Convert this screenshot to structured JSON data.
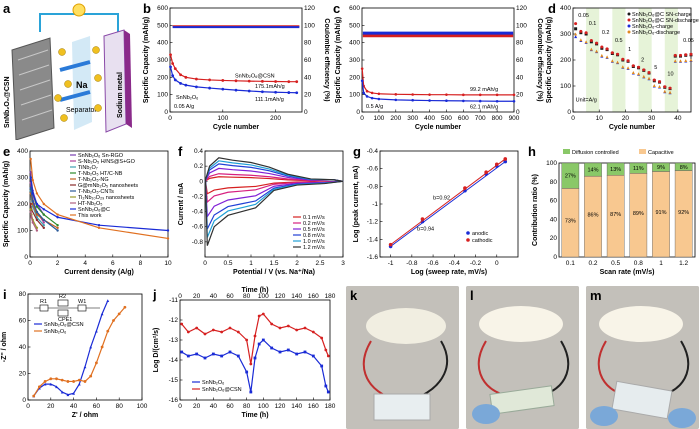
{
  "panel_labels": {
    "a": "a",
    "b": "b",
    "c": "c",
    "d": "d",
    "e": "e",
    "f": "f",
    "g": "g",
    "h": "h",
    "i": "i",
    "j": "j",
    "k": "k",
    "l": "l",
    "m": "m"
  },
  "schematic": {
    "electrode_label": "SnNb₂O₆@CSN",
    "ion_label": "Na",
    "separator_label": "Separator",
    "metal_label": "Sodium metal",
    "electron_label": "e⁻"
  },
  "chart_data": [
    {
      "id": "b",
      "type": "scatter",
      "xlabel": "Cycle number",
      "ylabel": "Specific Capacity (mAh/g)",
      "y2label": "Coulombic efficiency (%)",
      "xlim": [
        0,
        250
      ],
      "ylim": [
        0,
        600
      ],
      "y2lim": [
        0,
        120
      ],
      "xticks": [
        0,
        100,
        200
      ],
      "yticks": [
        0,
        100,
        200,
        300,
        400,
        500,
        600
      ],
      "y2ticks": [
        0,
        20,
        40,
        60,
        80,
        100,
        120
      ],
      "annotations": {
        "rate": "0.05 A/g",
        "cap1": "175.1mAh/g",
        "cap2": "111.1mAh/g",
        "series1": "SnNb₂O₆@CSN",
        "series2": "SnNb₂O₆"
      },
      "series": [
        {
          "name": "SnNb₂O₆@CSN",
          "color": "#d62020",
          "x": [
            1,
            5,
            10,
            20,
            30,
            50,
            75,
            100,
            125,
            150,
            175,
            200,
            225,
            240
          ],
          "y": [
            330,
            280,
            250,
            215,
            200,
            190,
            185,
            182,
            180,
            178,
            177,
            176,
            175,
            175
          ]
        },
        {
          "name": "SnNb₂O₆",
          "color": "#1a2bd6",
          "x": [
            1,
            5,
            10,
            20,
            30,
            50,
            75,
            100,
            125,
            150,
            175,
            200,
            225,
            240
          ],
          "y": [
            260,
            210,
            185,
            165,
            155,
            145,
            138,
            132,
            126,
            121,
            117,
            114,
            112,
            111
          ]
        }
      ],
      "ce_series": [
        {
          "name": "CE SnNb₂O₆@CSN",
          "color": "#d62020",
          "value": 99
        },
        {
          "name": "CE SnNb₂O₆",
          "color": "#1a2bd6",
          "value": 98
        }
      ]
    },
    {
      "id": "c",
      "type": "scatter",
      "xlabel": "Cycle number",
      "ylabel": "Specific Capacity (mAh/g)",
      "y2label": "Coulombic efficiency (%)",
      "xlim": [
        0,
        900
      ],
      "ylim": [
        0,
        600
      ],
      "y2lim": [
        0,
        120
      ],
      "xticks": [
        0,
        100,
        200,
        300,
        400,
        500,
        600,
        700,
        800,
        900
      ],
      "yticks": [
        0,
        100,
        200,
        300,
        400,
        500,
        600
      ],
      "y2ticks": [
        0,
        20,
        40,
        60,
        80,
        100,
        120
      ],
      "annotations": {
        "rate": "0.5 A/g",
        "cap1": "99.2 mAh/g",
        "cap2": "62.1 mAh/g"
      },
      "series": [
        {
          "name": "SnNb₂O₆@CSN",
          "color": "#d62020",
          "x": [
            1,
            10,
            30,
            60,
            100,
            200,
            300,
            400,
            500,
            600,
            700,
            800,
            900
          ],
          "y": [
            250,
            150,
            120,
            110,
            105,
            102,
            101,
            100,
            100,
            99,
            99,
            99,
            99
          ]
        },
        {
          "name": "SnNb₂O₆",
          "color": "#1a2bd6",
          "x": [
            1,
            10,
            30,
            60,
            100,
            200,
            300,
            400,
            500,
            600,
            700,
            800,
            900
          ],
          "y": [
            180,
            110,
            90,
            80,
            75,
            70,
            68,
            66,
            65,
            64,
            63,
            62,
            62
          ]
        }
      ]
    },
    {
      "id": "d",
      "type": "scatter",
      "xlabel": "Cycle number",
      "ylabel": "Specific Capacity (mAh/g)",
      "xlim": [
        0,
        45
      ],
      "ylim": [
        0,
        400
      ],
      "xticks": [
        0,
        10,
        20,
        30,
        40
      ],
      "yticks": [
        0,
        100,
        200,
        300,
        400
      ],
      "unit_label": "Unit=A/g",
      "rate_labels": [
        "0.05",
        "0.1",
        "0.2",
        "0.5",
        "1",
        "2",
        "5",
        "10",
        "0.05"
      ],
      "legend": [
        "SnNb₂O₆@C SN-charge",
        "SnNb₂O₆@C SN-discharge",
        "SnNb₂O₆-charge",
        "SnNb₂O₆-discharge"
      ],
      "series": [
        {
          "name": "SnNb₂O₆@C SN-charge",
          "color": "#1a1a1a",
          "x": [
            1,
            3,
            5,
            7,
            9,
            11,
            13,
            15,
            17,
            19,
            21,
            23,
            25,
            27,
            29,
            31,
            33,
            35,
            37,
            39,
            41,
            43,
            45
          ],
          "y": [
            320,
            305,
            300,
            270,
            262,
            245,
            240,
            225,
            220,
            200,
            195,
            175,
            170,
            160,
            150,
            120,
            115,
            95,
            90,
            215,
            215,
            218,
            220
          ]
        },
        {
          "name": "SnNb₂O₆@C SN-discharge",
          "color": "#d62020",
          "x": [
            1,
            3,
            5,
            7,
            9,
            11,
            13,
            15,
            17,
            19,
            21,
            23,
            25,
            27,
            29,
            31,
            33,
            35,
            37,
            39,
            41,
            43,
            45
          ],
          "y": [
            340,
            310,
            305,
            275,
            265,
            250,
            243,
            228,
            222,
            203,
            197,
            178,
            172,
            162,
            152,
            123,
            117,
            97,
            92,
            218,
            218,
            220,
            222
          ]
        },
        {
          "name": "SnNb₂O₆-charge",
          "color": "#1a2bd6",
          "x": [
            1,
            3,
            5,
            7,
            9,
            11,
            13,
            15,
            17,
            19,
            21,
            23,
            25,
            27,
            29,
            31,
            33,
            35,
            37,
            39,
            41,
            43,
            45
          ],
          "y": [
            290,
            275,
            268,
            240,
            232,
            215,
            210,
            195,
            190,
            172,
            168,
            150,
            145,
            135,
            128,
            100,
            96,
            78,
            74,
            195,
            195,
            196,
            198
          ]
        },
        {
          "name": "SnNb₂O₆-discharge",
          "color": "#e08a20",
          "x": [
            1,
            3,
            5,
            7,
            9,
            11,
            13,
            15,
            17,
            19,
            21,
            23,
            25,
            27,
            29,
            31,
            33,
            35,
            37,
            39,
            41,
            43,
            45
          ],
          "y": [
            300,
            278,
            270,
            242,
            234,
            218,
            212,
            197,
            192,
            174,
            170,
            152,
            147,
            137,
            130,
            102,
            98,
            80,
            76,
            197,
            197,
            198,
            200
          ]
        }
      ]
    },
    {
      "id": "e",
      "type": "line",
      "xlabel": "Current density (A/g)",
      "ylabel": "Specific Capacity (mAh/g)",
      "xlim": [
        0,
        10
      ],
      "ylim": [
        0,
        400
      ],
      "xticks": [
        0,
        2,
        4,
        6,
        8,
        10
      ],
      "yticks": [
        0,
        100,
        200,
        300,
        400
      ],
      "legend": [
        "SnNb₂O₆ Sn-RGO",
        "S-Nb₂O₅ H/NS@S+GO",
        "TiNb₂O₇",
        "T-Nb₂O₅ HT/C-NB",
        "T-Nb₂O₅-NG",
        "G@mNb₂O₅ nanosheets",
        "T-Nb₂O₅-CNTs",
        "Ti₂Nb₁₀O₂₉ nanosheets",
        "HT-Nb₂O₅",
        "SnNb₂O₆@C",
        "This work"
      ],
      "colors": [
        "#7a3fb0",
        "#b03f9a",
        "#3fa0b0",
        "#2a8a2a",
        "#c06020",
        "#8a2a2a",
        "#2a5a9a",
        "#9a9a2a",
        "#b06080",
        "#1a2bd6",
        "#e07020"
      ]
    },
    {
      "id": "f",
      "type": "line",
      "xlabel": "Potential / V (vs. Na⁺/Na)",
      "ylabel": "Current / mA",
      "xlim": [
        0,
        3
      ],
      "ylim": [
        -1.0,
        0.4
      ],
      "xticks": [
        0,
        0.5,
        1.0,
        1.5,
        2.0,
        2.5,
        3.0
      ],
      "yticks": [
        -0.8,
        -0.6,
        -0.4,
        -0.2,
        0.0,
        0.2,
        0.4
      ],
      "legend": [
        "0.1 mV/s",
        "0.2 mV/s",
        "0.5 mV/s",
        "0.8 mV/s",
        "1.0 mV/s",
        "1.2 mV/s"
      ],
      "colors": [
        "#d62020",
        "#d62080",
        "#8020d6",
        "#2040d6",
        "#20a0d6",
        "#303030"
      ],
      "peak_current": [
        0.06,
        0.1,
        0.17,
        0.23,
        0.27,
        0.31
      ]
    },
    {
      "id": "g",
      "type": "scatter",
      "xlabel": "Log (sweep rate, mV/s)",
      "ylabel": "Log (peak current, mA)",
      "xlim": [
        -1.1,
        0.2
      ],
      "ylim": [
        -1.6,
        -0.4
      ],
      "xticks": [
        -1.0,
        -0.8,
        -0.6,
        -0.4,
        -0.2,
        0.0
      ],
      "yticks": [
        -1.6,
        -1.4,
        -1.2,
        -1.0,
        -0.8,
        -0.6,
        -0.4
      ],
      "annotations": {
        "b1": "b=0.92",
        "b2": "b=0.94"
      },
      "series": [
        {
          "name": "anodic",
          "color": "#1a2bd6",
          "x": [
            -1.0,
            -0.7,
            -0.3,
            -0.1,
            0.0,
            0.08
          ],
          "y": [
            -1.48,
            -1.2,
            -0.85,
            -0.66,
            -0.57,
            -0.52
          ]
        },
        {
          "name": "cathodic",
          "color": "#d62020",
          "x": [
            -1.0,
            -0.7,
            -0.3,
            -0.1,
            0.0,
            0.08
          ],
          "y": [
            -1.46,
            -1.17,
            -0.82,
            -0.64,
            -0.55,
            -0.49
          ]
        }
      ]
    },
    {
      "id": "h",
      "type": "bar",
      "xlabel": "Scan rate (mV/s)",
      "ylabel": "Contribution ratio (%)",
      "categories": [
        "0.1",
        "0.2",
        "0.5",
        "0.8",
        "1",
        "1.2"
      ],
      "ylim": [
        0,
        100
      ],
      "yticks": [
        0,
        20,
        40,
        60,
        80,
        100
      ],
      "legend": [
        "Diffusion controlled",
        "Capacitive"
      ],
      "series": [
        {
          "name": "Capacitive",
          "color": "#f8c890",
          "values": [
            73,
            86,
            87,
            89,
            91,
            92
          ],
          "labels": [
            "73%",
            "86%",
            "87%",
            "89%",
            "91%",
            "92%"
          ]
        },
        {
          "name": "Diffusion controlled",
          "color": "#8ac868",
          "values": [
            27,
            14,
            13,
            11,
            9,
            8
          ],
          "labels": [
            "27%",
            "14%",
            "13%",
            "11%",
            "9%",
            "8%"
          ]
        }
      ]
    },
    {
      "id": "i",
      "type": "line",
      "xlabel": "Z' / ohm",
      "ylabel": "-Z'' / ohm",
      "xlim": [
        0,
        100
      ],
      "ylim": [
        0,
        80
      ],
      "xticks": [
        0,
        20,
        40,
        60,
        80,
        100
      ],
      "yticks": [
        0,
        20,
        40,
        60,
        80
      ],
      "circuit_labels": [
        "R1",
        "R2",
        "W1",
        "CPE1"
      ],
      "series": [
        {
          "name": "SnNb₂O₆@CSN",
          "color": "#1a2bd6",
          "x": [
            5,
            10,
            15,
            20,
            25,
            30,
            35,
            40,
            45,
            50,
            55,
            60,
            65,
            70
          ],
          "y": [
            3,
            9,
            12,
            12,
            10,
            6,
            4,
            5,
            12,
            25,
            40,
            52,
            65,
            75
          ]
        },
        {
          "name": "SnNb₂O₆",
          "color": "#e07020",
          "x": [
            5,
            10,
            15,
            20,
            25,
            30,
            35,
            40,
            45,
            50,
            55,
            60,
            65,
            70,
            75,
            80,
            85
          ],
          "y": [
            3,
            10,
            14,
            16,
            16,
            15,
            14,
            14,
            15,
            14,
            18,
            28,
            40,
            52,
            60,
            65,
            70
          ]
        }
      ]
    },
    {
      "id": "j",
      "type": "line",
      "xlabel": "Time (h)",
      "ylabel": "Log D/(cm²/s)",
      "xlim": [
        0,
        180
      ],
      "ylim": [
        -16,
        -11
      ],
      "xticks": [
        0,
        20,
        40,
        60,
        80,
        100,
        120,
        140,
        160,
        180
      ],
      "yticks": [
        -16,
        -15,
        -14,
        -13,
        -12,
        -11
      ],
      "top_xlabel": "Time (h)",
      "series": [
        {
          "name": "SnNb₂O₆",
          "color": "#1a2bd6",
          "x": [
            2,
            10,
            20,
            30,
            40,
            50,
            60,
            70,
            80,
            85,
            90,
            95,
            100,
            110,
            120,
            130,
            140,
            150,
            160,
            170,
            175,
            178
          ],
          "y": [
            -13.6,
            -13.8,
            -13.7,
            -13.9,
            -13.7,
            -13.8,
            -13.6,
            -13.8,
            -14.6,
            -15.6,
            -13.9,
            -13.2,
            -13.0,
            -13.4,
            -13.6,
            -13.5,
            -13.7,
            -13.6,
            -13.8,
            -14.3,
            -15.3,
            -15.6
          ]
        },
        {
          "name": "SnNb₂O₆@CSN",
          "color": "#d62020",
          "x": [
            2,
            10,
            20,
            30,
            40,
            50,
            60,
            70,
            80,
            85,
            90,
            95,
            100,
            110,
            120,
            130,
            140,
            150,
            160,
            170,
            175,
            178
          ],
          "y": [
            -12.2,
            -12.6,
            -12.4,
            -12.7,
            -12.5,
            -12.6,
            -12.4,
            -12.6,
            -13.0,
            -14.2,
            -12.8,
            -11.8,
            -11.7,
            -12.2,
            -12.4,
            -12.3,
            -12.5,
            -12.4,
            -12.6,
            -12.9,
            -13.5,
            -13.8
          ]
        }
      ]
    }
  ]
}
